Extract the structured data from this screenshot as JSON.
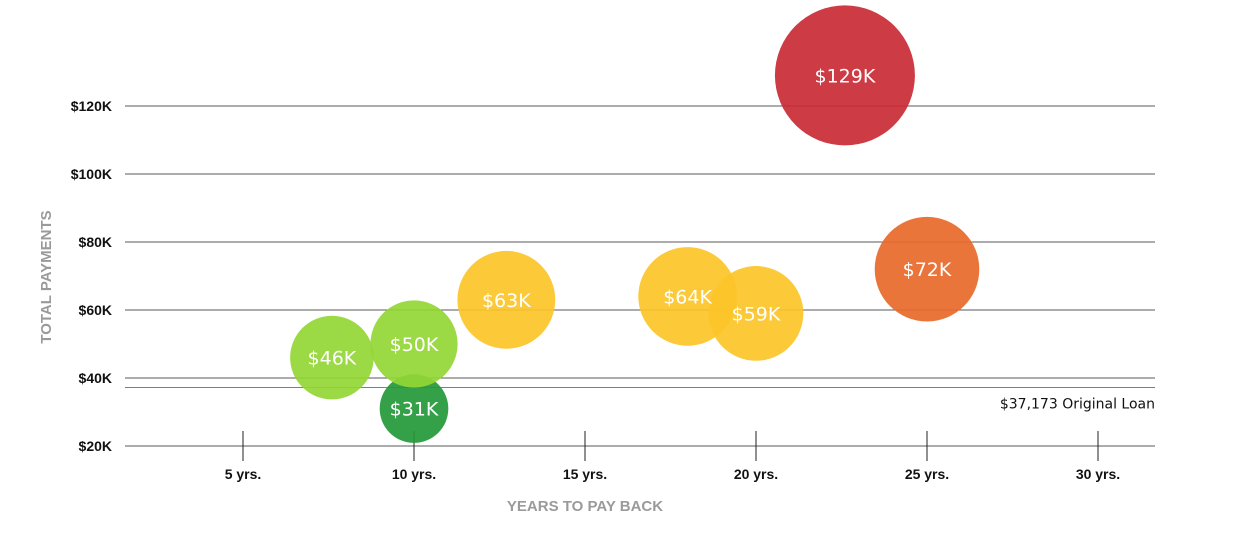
{
  "chart_data": {
    "type": "bubble",
    "xlabel": "YEARS TO PAY BACK",
    "ylabel": "TOTAL PAYMENTS",
    "xlim": [
      1.5,
      31.7
    ],
    "ylim": [
      20000,
      129000
    ],
    "x_ticks": [
      {
        "value": 5,
        "label": "5 yrs."
      },
      {
        "value": 10,
        "label": "10 yrs."
      },
      {
        "value": 15,
        "label": "15 yrs."
      },
      {
        "value": 20,
        "label": "20 yrs."
      },
      {
        "value": 25,
        "label": "25 yrs."
      },
      {
        "value": 30,
        "label": "30 yrs."
      }
    ],
    "y_ticks": [
      {
        "value": 20000,
        "label": "$20K"
      },
      {
        "value": 40000,
        "label": "$40K"
      },
      {
        "value": 60000,
        "label": "$60K"
      },
      {
        "value": 80000,
        "label": "$80K"
      },
      {
        "value": 100000,
        "label": "$100K"
      },
      {
        "value": 120000,
        "label": "$120K"
      }
    ],
    "reference_line": {
      "value": 37173,
      "label": "$37,173 Original Loan"
    },
    "grid": true,
    "points": [
      {
        "x": 10,
        "y": 31000,
        "label": "$31K",
        "color": "#23993a"
      },
      {
        "x": 7.6,
        "y": 46000,
        "label": "$46K",
        "color": "#92d635"
      },
      {
        "x": 10,
        "y": 50000,
        "label": "$50K",
        "color": "#92d635"
      },
      {
        "x": 12.7,
        "y": 63000,
        "label": "$63K",
        "color": "#fcc428"
      },
      {
        "x": 18,
        "y": 64000,
        "label": "$64K",
        "color": "#fcc428"
      },
      {
        "x": 20,
        "y": 59000,
        "label": "$59K",
        "color": "#fcc428"
      },
      {
        "x": 25,
        "y": 72000,
        "label": "$72K",
        "color": "#e8692a"
      },
      {
        "x": 22.6,
        "y": 129000,
        "label": "$129K",
        "color": "#c92a35"
      }
    ]
  }
}
